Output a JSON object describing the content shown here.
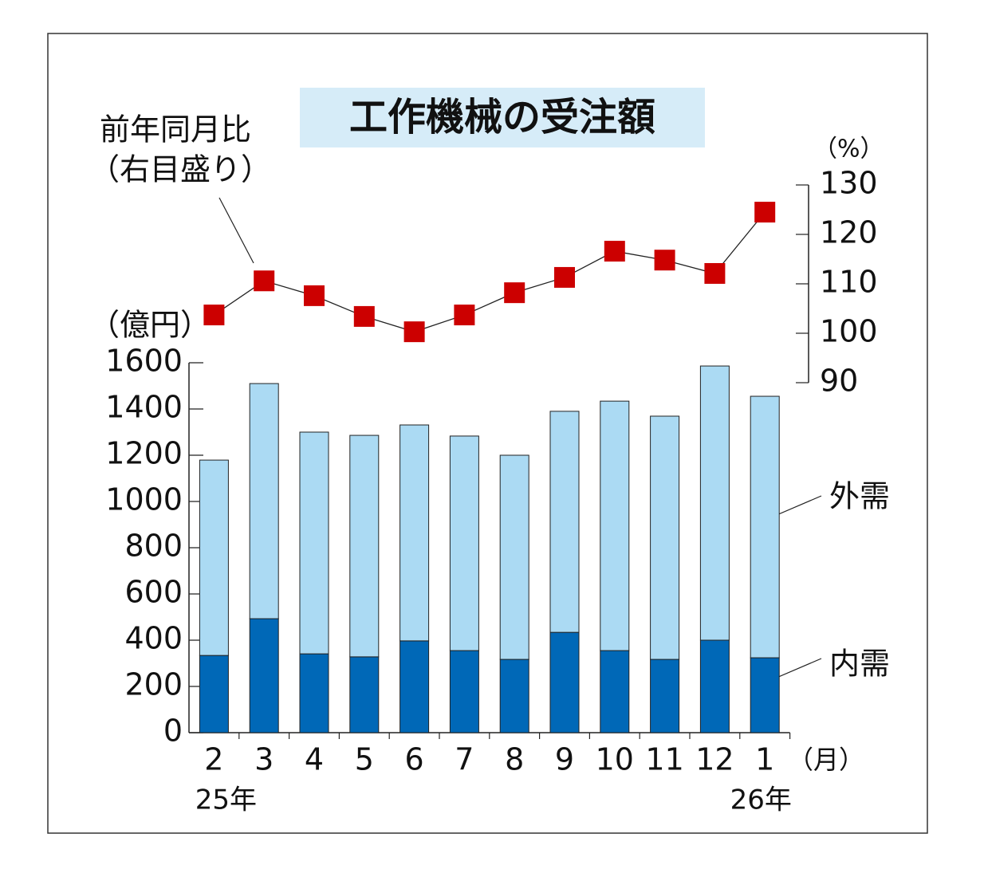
{
  "chart_data": {
    "type": "stacked-bar-line",
    "title": "工作機械の受注額",
    "categories": [
      "2",
      "3",
      "4",
      "5",
      "6",
      "7",
      "8",
      "9",
      "10",
      "11",
      "12",
      "1"
    ],
    "category_sublabels": [
      "25年",
      null,
      null,
      null,
      null,
      null,
      null,
      null,
      null,
      null,
      null,
      "26年"
    ],
    "x_unit": "（月）",
    "y_unit": "（億円）",
    "y2_unit": "（%）",
    "series": [
      {
        "name": "内需",
        "color": "#0068b7",
        "values": [
          334,
          493,
          341,
          328,
          397,
          355,
          317,
          434,
          355,
          317,
          400,
          324
        ]
      },
      {
        "name": "外需",
        "color": "#abdaf3",
        "values": [
          845,
          1017,
          959,
          958,
          934,
          928,
          883,
          956,
          1079,
          1052,
          1186,
          1131
        ]
      },
      {
        "name": "前年同月比",
        "note": "（右目盛り）",
        "type": "line",
        "axis": "y2",
        "color": "#cc0000",
        "values": [
          103.7,
          110.6,
          107.6,
          103.4,
          100.3,
          103.7,
          108.2,
          111.3,
          116.6,
          114.8,
          112.1,
          124.5
        ]
      }
    ],
    "ylim": [
      0,
      1600
    ],
    "yticks": [
      0,
      200,
      400,
      600,
      800,
      1000,
      1200,
      1400,
      1600
    ],
    "y2lim": [
      90,
      130
    ],
    "y2ticks": [
      90,
      100,
      110,
      120,
      130
    ]
  }
}
